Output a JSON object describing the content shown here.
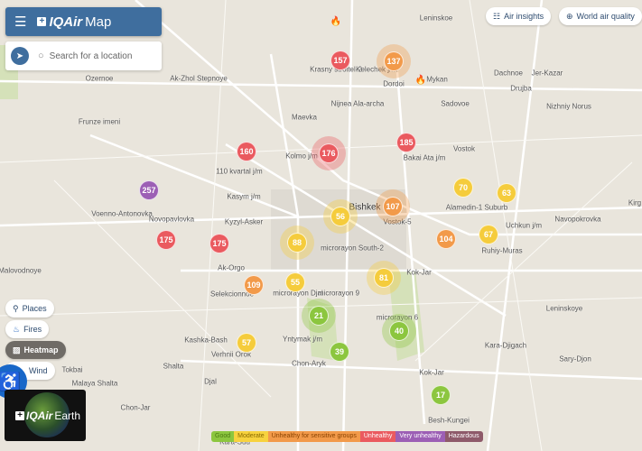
{
  "header": {
    "menu_icon": "hamburger-icon",
    "logo": "IQAir",
    "logo_suffix": "Map"
  },
  "search": {
    "placeholder": "Search for a location",
    "locate_icon": "navigation-arrow-icon"
  },
  "top_buttons": [
    {
      "label": "Air insights",
      "icon": "list-icon"
    },
    {
      "label": "World air quality",
      "icon": "globe-icon"
    }
  ],
  "layer_toggles": [
    {
      "label": "Places",
      "icon": "pin-icon",
      "active": false
    },
    {
      "label": "Fires",
      "icon": "flame-icon",
      "active": false
    },
    {
      "label": "Heatmap",
      "icon": "heatmap-icon",
      "active": true
    },
    {
      "label": "Wind",
      "icon": "wind-icon",
      "active": false
    }
  ],
  "earth_promo": {
    "logo": "IQAir",
    "suffix": "Earth"
  },
  "legend": [
    {
      "label": "Good",
      "color": "#8cc63f",
      "text": "#4b7a12"
    },
    {
      "label": "Moderate",
      "color": "#f7d23e",
      "text": "#8a6a00"
    },
    {
      "label": "Unhealthy for sensitive groups",
      "color": "#f29a4a",
      "text": "#8a4200"
    },
    {
      "label": "Unhealthy",
      "color": "#ea5a5f",
      "text": "#ffffff"
    },
    {
      "label": "Very unhealthy",
      "color": "#9c5fb5",
      "text": "#ffffff"
    },
    {
      "label": "Hazardous",
      "color": "#8e5a6a",
      "text": "#ffffff"
    }
  ],
  "colors": {
    "good": "#8cc63f",
    "moderate": "#f5cc3c",
    "usg": "#f29a4a",
    "unhealthy": "#ea5a5f",
    "very_unhealthy": "#9c5fb5"
  },
  "markers": [
    {
      "aqi": "157",
      "level": "unhealthy"
    },
    {
      "aqi": "137",
      "level": "usg"
    },
    {
      "aqi": "160",
      "level": "unhealthy"
    },
    {
      "aqi": "176",
      "level": "unhealthy"
    },
    {
      "aqi": "185",
      "level": "unhealthy"
    },
    {
      "aqi": "257",
      "level": "very_unhealthy"
    },
    {
      "aqi": "70",
      "level": "moderate"
    },
    {
      "aqi": "63",
      "level": "moderate"
    },
    {
      "aqi": "56",
      "level": "moderate"
    },
    {
      "aqi": "107",
      "level": "usg"
    },
    {
      "aqi": "175",
      "level": "unhealthy"
    },
    {
      "aqi": "175",
      "level": "unhealthy"
    },
    {
      "aqi": "88",
      "level": "moderate"
    },
    {
      "aqi": "104",
      "level": "usg"
    },
    {
      "aqi": "67",
      "level": "moderate"
    },
    {
      "aqi": "109",
      "level": "usg"
    },
    {
      "aqi": "55",
      "level": "moderate"
    },
    {
      "aqi": "81",
      "level": "moderate"
    },
    {
      "aqi": "21",
      "level": "good"
    },
    {
      "aqi": "40",
      "level": "good"
    },
    {
      "aqi": "57",
      "level": "moderate"
    },
    {
      "aqi": "39",
      "level": "good"
    },
    {
      "aqi": "17",
      "level": "good"
    }
  ],
  "places": [
    "Leninskoe",
    "Krasny stroitel-2",
    "Kelechek j/m",
    "Dordoi",
    "Mykan",
    "Ozernoe",
    "Ak-Zhol Stepnoye",
    "Dachnoe",
    "Jer-Kazar",
    "Drujba",
    "Sadovoe",
    "Nizhniy Norus",
    "Nijnea Ala-archa",
    "Maevka",
    "Frunze imeni",
    "Vostok",
    "Bakai Ata j/m",
    "Kolmo j/m",
    "110 kvartal j/m",
    "Kasym j/m",
    "Voenno-Antonovka",
    "Novopavlovka",
    "Kyzyl-Asker",
    "Bishkek",
    "Vostok-5",
    "microrayon South-2",
    "Alamedin-1 Suburb",
    "Uchkun j/m",
    "Navopokrovka",
    "Ruhiy-Muras",
    "Ak-Orgo",
    "Selekcionnoe",
    "microrayon Djal",
    "microrayon 9",
    "Kok-Jar",
    "Leninskoye",
    "Malovodnoye",
    "Kashka-Bash",
    "Yntymak j/m",
    "microrayon 6",
    "Verhnii Orok",
    "Chon-Aryk",
    "Kara-Djigach",
    "Sary-Djon",
    "Kok-Jar",
    "Shalta",
    "Djal",
    "Malaya Shalta",
    "Chon-Jar",
    "Besh-Kungei",
    "Kara-Suu",
    "Tokbai",
    "Kirg"
  ]
}
